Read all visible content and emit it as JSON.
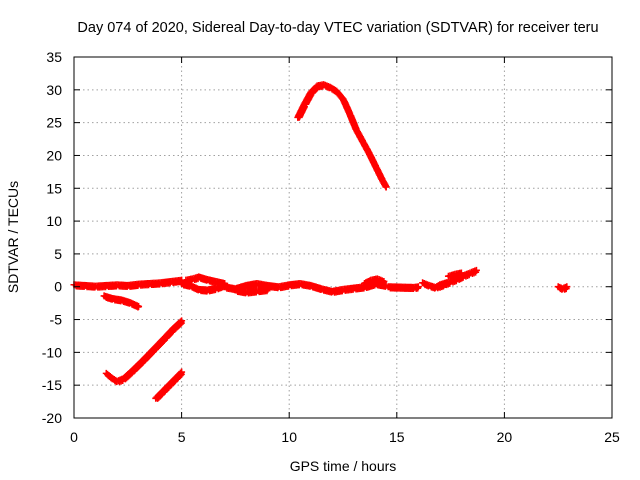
{
  "chart_data": {
    "type": "scatter",
    "title": "Day 074 of 2020, Sidereal Day-to-day VTEC variation (SDTVAR) for receiver teru",
    "xlabel": "GPS time / hours",
    "ylabel": "SDTVAR / TECUs",
    "xlim": [
      0,
      25
    ],
    "ylim": [
      -20,
      35
    ],
    "x_ticks": [
      0,
      5,
      10,
      15,
      20,
      25
    ],
    "y_ticks": [
      -20,
      -15,
      -10,
      -5,
      0,
      5,
      10,
      15,
      20,
      25,
      30,
      35
    ],
    "grid": true,
    "marker": "plus",
    "color": "#ff0000",
    "series": [
      {
        "x": [
          0.0,
          0.5,
          1.0,
          1.5,
          2.0,
          2.5,
          3.0,
          3.5,
          4.0,
          4.5,
          5.0
        ],
        "y": [
          0.3,
          0.2,
          0.1,
          0.2,
          0.3,
          0.2,
          0.4,
          0.5,
          0.6,
          0.8,
          1.0
        ]
      },
      {
        "x": [
          1.4,
          1.8,
          2.2,
          2.6,
          3.0
        ],
        "y": [
          -1.4,
          -1.8,
          -2.0,
          -2.4,
          -3.0
        ]
      },
      {
        "x": [
          1.5,
          1.8,
          2.0,
          2.3,
          2.7,
          3.2,
          3.7,
          4.2,
          4.6,
          5.0
        ],
        "y": [
          -13.2,
          -14.0,
          -14.4,
          -14.0,
          -12.8,
          -11.2,
          -9.5,
          -7.8,
          -6.4,
          -5.2
        ]
      },
      {
        "x": [
          3.8,
          4.1,
          4.4,
          4.7,
          5.0
        ],
        "y": [
          -17.0,
          -16.0,
          -15.0,
          -14.0,
          -13.0
        ]
      },
      {
        "x": [
          5.0,
          5.4,
          5.8,
          6.2,
          6.6,
          7.0
        ],
        "y": [
          0.5,
          0.2,
          -0.4,
          -0.5,
          -0.2,
          0.3
        ]
      },
      {
        "x": [
          5.2,
          5.5,
          5.8,
          6.2,
          6.6,
          7.0
        ],
        "y": [
          1.0,
          1.2,
          1.5,
          1.1,
          0.8,
          0.5
        ]
      },
      {
        "x": [
          7.0,
          7.5,
          8.0,
          8.5,
          9.0,
          9.5,
          10.0,
          10.5,
          11.0,
          11.5,
          12.0,
          12.5,
          13.0,
          13.5,
          14.0,
          14.5
        ],
        "y": [
          0.0,
          -0.3,
          0.2,
          0.5,
          0.2,
          0.0,
          0.3,
          0.5,
          0.2,
          -0.3,
          -0.7,
          -0.4,
          -0.2,
          0.0,
          0.5,
          0.2
        ]
      },
      {
        "x": [
          7.5,
          8.0,
          8.5,
          9.0
        ],
        "y": [
          -0.5,
          -0.8,
          -0.6,
          -0.4
        ]
      },
      {
        "x": [
          13.5,
          13.8,
          14.1,
          14.4
        ],
        "y": [
          0.5,
          1.0,
          1.2,
          0.8
        ]
      },
      {
        "x": [
          10.4,
          10.7,
          11.0,
          11.3,
          11.6,
          11.9,
          12.2,
          12.5,
          12.8,
          13.1,
          13.4,
          13.7,
          14.0,
          14.3,
          14.5
        ],
        "y": [
          25.8,
          27.8,
          29.6,
          30.6,
          30.8,
          30.4,
          29.8,
          28.6,
          26.4,
          24.0,
          22.2,
          20.4,
          18.4,
          16.4,
          15.2
        ]
      },
      {
        "x": [
          14.6,
          15.8,
          16.0
        ],
        "y": [
          0.0,
          -0.1,
          0.0
        ]
      },
      {
        "x": [
          16.2,
          16.5,
          16.8,
          17.0,
          17.3
        ],
        "y": [
          0.6,
          0.2,
          -0.1,
          0.3,
          0.6
        ]
      },
      {
        "x": [
          16.9,
          17.2,
          17.5,
          17.8,
          18.1,
          18.4,
          18.7
        ],
        "y": [
          0.0,
          0.4,
          0.8,
          1.2,
          1.7,
          2.1,
          2.5
        ]
      },
      {
        "x": [
          17.4,
          17.7,
          18.0
        ],
        "y": [
          1.6,
          1.9,
          2.1
        ]
      },
      {
        "x": [
          22.5,
          22.7,
          22.9
        ],
        "y": [
          0.0,
          -0.3,
          0.0
        ]
      }
    ]
  }
}
